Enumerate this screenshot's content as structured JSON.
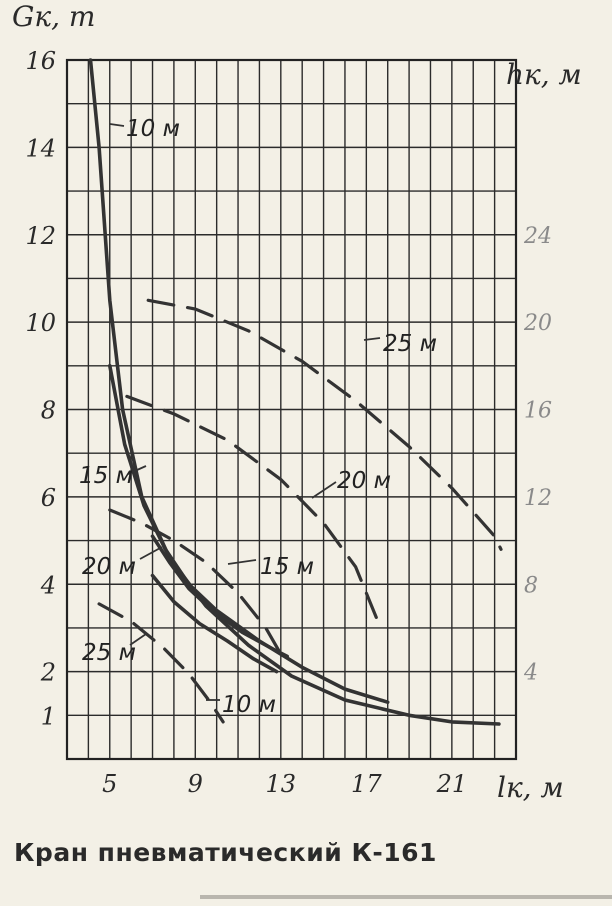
{
  "chart_data": {
    "type": "line",
    "title": "",
    "xlabel": "lк, м",
    "ylabel": "Gк, т",
    "y2label": "hк, м",
    "xlim": [
      3,
      24
    ],
    "ylim": [
      0,
      16
    ],
    "y2lim": [
      0,
      32
    ],
    "x_ticks": [
      "5",
      "9",
      "13",
      "17",
      "21"
    ],
    "x_tick_values": [
      5,
      9,
      13,
      17,
      21
    ],
    "y_ticks": [
      "1",
      "2",
      "4",
      "6",
      "8",
      "10",
      "12",
      "14",
      "16"
    ],
    "y_tick_values": [
      1,
      2,
      4,
      6,
      8,
      10,
      12,
      14,
      16
    ],
    "y2_ticks": [
      "4",
      "8",
      "12",
      "16",
      "20",
      "24"
    ],
    "y2_tick_values": [
      4,
      8,
      12,
      16,
      20,
      24
    ],
    "grid": true,
    "load_curves": [
      {
        "label": "10 м",
        "style": "solid",
        "points": [
          [
            4.1,
            16
          ],
          [
            4.5,
            14
          ],
          [
            5,
            10.5
          ],
          [
            5.6,
            8
          ],
          [
            6.5,
            6
          ],
          [
            7.8,
            4.6
          ],
          [
            9.5,
            3.5
          ],
          [
            11.5,
            2.6
          ],
          [
            13.5,
            1.9
          ],
          [
            16,
            1.35
          ],
          [
            19,
            1.0
          ],
          [
            21,
            0.85
          ],
          [
            23.2,
            0.8
          ]
        ]
      },
      {
        "label": "15 м",
        "style": "solid",
        "points": [
          [
            5,
            9
          ],
          [
            5.7,
            7.2
          ],
          [
            6.6,
            5.8
          ],
          [
            7.6,
            4.8
          ],
          [
            8.7,
            4.0
          ],
          [
            10,
            3.4
          ],
          [
            12,
            2.7
          ],
          [
            14,
            2.1
          ],
          [
            16,
            1.6
          ],
          [
            18,
            1.3
          ]
        ]
      },
      {
        "label": "20 м",
        "style": "solid",
        "points": [
          [
            7,
            5.1
          ],
          [
            7.8,
            4.5
          ],
          [
            8.7,
            3.9
          ],
          [
            9.8,
            3.4
          ],
          [
            11.2,
            2.9
          ],
          [
            12.7,
            2.5
          ],
          [
            13.3,
            2.35
          ]
        ]
      },
      {
        "label": "25 м",
        "style": "solid",
        "points": [
          [
            7,
            4.2
          ],
          [
            8,
            3.6
          ],
          [
            9.2,
            3.1
          ],
          [
            10.5,
            2.7
          ],
          [
            11.7,
            2.3
          ],
          [
            12.8,
            2.0
          ]
        ]
      }
    ],
    "height_curves": [
      {
        "label": "25 м",
        "style": "dashed",
        "points": [
          [
            6.8,
            21
          ],
          [
            9,
            20.6
          ],
          [
            11.5,
            19.6
          ],
          [
            14,
            18.2
          ],
          [
            16.5,
            16.4
          ],
          [
            19,
            14.3
          ],
          [
            21,
            12.4
          ],
          [
            23,
            10.2
          ],
          [
            23.3,
            9.6
          ]
        ]
      },
      {
        "label": "20 м",
        "style": "dashed",
        "points": [
          [
            5.8,
            16.6
          ],
          [
            8,
            15.8
          ],
          [
            10.5,
            14.6
          ],
          [
            13,
            12.8
          ],
          [
            15,
            10.8
          ],
          [
            16.5,
            8.8
          ],
          [
            17.5,
            6.4
          ]
        ]
      },
      {
        "label": "15 м",
        "style": "dashed",
        "points": [
          [
            5,
            11.4
          ],
          [
            6.5,
            10.8
          ],
          [
            8,
            10.0
          ],
          [
            9.5,
            9.0
          ],
          [
            11,
            7.6
          ],
          [
            12.3,
            6.0
          ],
          [
            13,
            4.8
          ]
        ]
      },
      {
        "label": "10 м",
        "style": "dashed",
        "points": [
          [
            4.5,
            7.1
          ],
          [
            6,
            6.3
          ],
          [
            7.5,
            5.1
          ],
          [
            8.7,
            3.9
          ],
          [
            9.7,
            2.6
          ],
          [
            10.3,
            1.7
          ]
        ]
      }
    ]
  },
  "caption": "Кран пневматический К-161"
}
